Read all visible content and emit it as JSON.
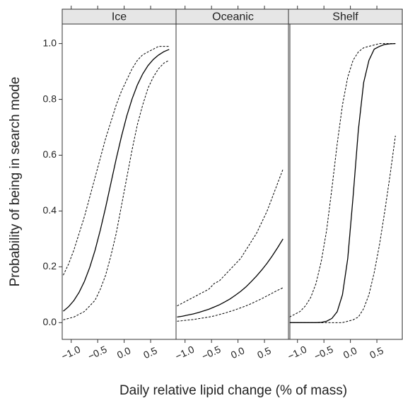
{
  "axis_labels": {
    "x": "Daily relative lipid change (% of mass)",
    "y": "Probability of being in search mode"
  },
  "chart_data": [
    {
      "type": "line",
      "title": "Ice",
      "x": [
        -1.15,
        -1.05,
        -0.95,
        -0.85,
        -0.75,
        -0.65,
        -0.55,
        -0.45,
        -0.35,
        -0.25,
        -0.15,
        -0.05,
        0.05,
        0.15,
        0.25,
        0.35,
        0.45,
        0.55,
        0.65,
        0.75,
        0.85
      ],
      "series": [
        {
          "color": "#000000",
          "dash": false,
          "values": [
            0.041,
            0.057,
            0.079,
            0.109,
            0.148,
            0.198,
            0.259,
            0.332,
            0.413,
            0.5,
            0.587,
            0.668,
            0.741,
            0.802,
            0.852,
            0.891,
            0.921,
            0.943,
            0.959,
            0.971,
            0.979
          ]
        },
        {
          "color": "#000000",
          "dash": true,
          "values": [
            0.17,
            0.21,
            0.26,
            0.32,
            0.38,
            0.45,
            0.52,
            0.59,
            0.66,
            0.72,
            0.78,
            0.83,
            0.87,
            0.91,
            0.94,
            0.96,
            0.97,
            0.98,
            0.99,
            0.99,
            0.99
          ]
        },
        {
          "color": "#000000",
          "dash": true,
          "values": [
            0.01,
            0.015,
            0.02,
            0.03,
            0.04,
            0.06,
            0.08,
            0.12,
            0.17,
            0.24,
            0.32,
            0.42,
            0.52,
            0.62,
            0.71,
            0.78,
            0.84,
            0.88,
            0.91,
            0.93,
            0.94
          ]
        }
      ],
      "xlim": [
        -1.17,
        0.98
      ],
      "ylim": [
        -0.06,
        1.07
      ],
      "xticks": [
        {
          "value": -1.0,
          "label": "−1.0"
        },
        {
          "value": -0.5,
          "label": "−0.5"
        },
        {
          "value": 0.0,
          "label": "0.0"
        },
        {
          "value": 0.5,
          "label": "0.5"
        }
      ],
      "yticks": [
        {
          "value": 0.0,
          "label": "0.0"
        },
        0.2,
        0.4,
        0.6,
        0.8,
        {
          "value": 1.0,
          "label": "1.0"
        }
      ]
    },
    {
      "type": "line",
      "title": "Oceanic",
      "x": [
        -1.15,
        -1.05,
        -0.95,
        -0.85,
        -0.75,
        -0.65,
        -0.55,
        -0.45,
        -0.35,
        -0.25,
        -0.15,
        -0.05,
        0.05,
        0.15,
        0.25,
        0.35,
        0.45,
        0.55,
        0.65,
        0.75,
        0.85
      ],
      "series": [
        {
          "color": "#000000",
          "dash": false,
          "values": [
            0.02,
            0.023,
            0.027,
            0.031,
            0.036,
            0.042,
            0.048,
            0.056,
            0.064,
            0.074,
            0.085,
            0.098,
            0.112,
            0.128,
            0.147,
            0.167,
            0.189,
            0.213,
            0.24,
            0.269,
            0.3
          ]
        },
        {
          "color": "#000000",
          "dash": true,
          "values": [
            0.06,
            0.07,
            0.08,
            0.09,
            0.1,
            0.11,
            0.12,
            0.14,
            0.15,
            0.17,
            0.19,
            0.21,
            0.23,
            0.26,
            0.29,
            0.32,
            0.36,
            0.4,
            0.45,
            0.5,
            0.55
          ]
        },
        {
          "color": "#000000",
          "dash": true,
          "values": [
            0.005,
            0.007,
            0.009,
            0.011,
            0.014,
            0.017,
            0.02,
            0.024,
            0.029,
            0.034,
            0.04,
            0.046,
            0.053,
            0.06,
            0.068,
            0.077,
            0.086,
            0.096,
            0.106,
            0.116,
            0.125
          ]
        }
      ],
      "xlim": [
        -1.17,
        0.98
      ],
      "ylim": [
        -0.06,
        1.07
      ],
      "xticks": [
        {
          "value": -1.0,
          "label": "−1.0"
        },
        {
          "value": -0.5,
          "label": "−0.5"
        },
        {
          "value": 0.0,
          "label": "0.0"
        },
        {
          "value": 0.5,
          "label": "0.5"
        }
      ]
    },
    {
      "type": "line",
      "title": "Shelf",
      "x": [
        -1.15,
        -1.05,
        -0.95,
        -0.85,
        -0.75,
        -0.65,
        -0.55,
        -0.45,
        -0.35,
        -0.25,
        -0.15,
        -0.05,
        0.05,
        0.15,
        0.25,
        0.35,
        0.45,
        0.55,
        0.65,
        0.75,
        0.85
      ],
      "series": [
        {
          "color": "#000000",
          "dash": false,
          "values": [
            0,
            0,
            0,
            0,
            0,
            0,
            0.001,
            0.005,
            0.015,
            0.039,
            0.1,
            0.23,
            0.45,
            0.69,
            0.86,
            0.94,
            0.98,
            0.99,
            0.997,
            0.999,
            1.0
          ]
        },
        {
          "color": "#000000",
          "dash": true,
          "values": [
            0.02,
            0.03,
            0.04,
            0.06,
            0.09,
            0.14,
            0.22,
            0.33,
            0.48,
            0.64,
            0.78,
            0.88,
            0.94,
            0.97,
            0.985,
            0.99,
            0.995,
            1,
            1,
            1,
            1
          ]
        },
        {
          "color": "#000000",
          "dash": true,
          "values": [
            0,
            0,
            0,
            0,
            0,
            0,
            0,
            0,
            0,
            0,
            0,
            0.005,
            0.01,
            0.02,
            0.05,
            0.1,
            0.18,
            0.28,
            0.4,
            0.53,
            0.67
          ]
        }
      ],
      "xlim": [
        -1.17,
        0.98
      ],
      "ylim": [
        -0.06,
        1.07
      ],
      "xticks": [
        {
          "value": -1.0,
          "label": "−1.0"
        },
        {
          "value": -0.5,
          "label": "−0.5"
        },
        {
          "value": 0.0,
          "label": "0.0"
        },
        {
          "value": 0.5,
          "label": "0.5"
        }
      ]
    }
  ]
}
